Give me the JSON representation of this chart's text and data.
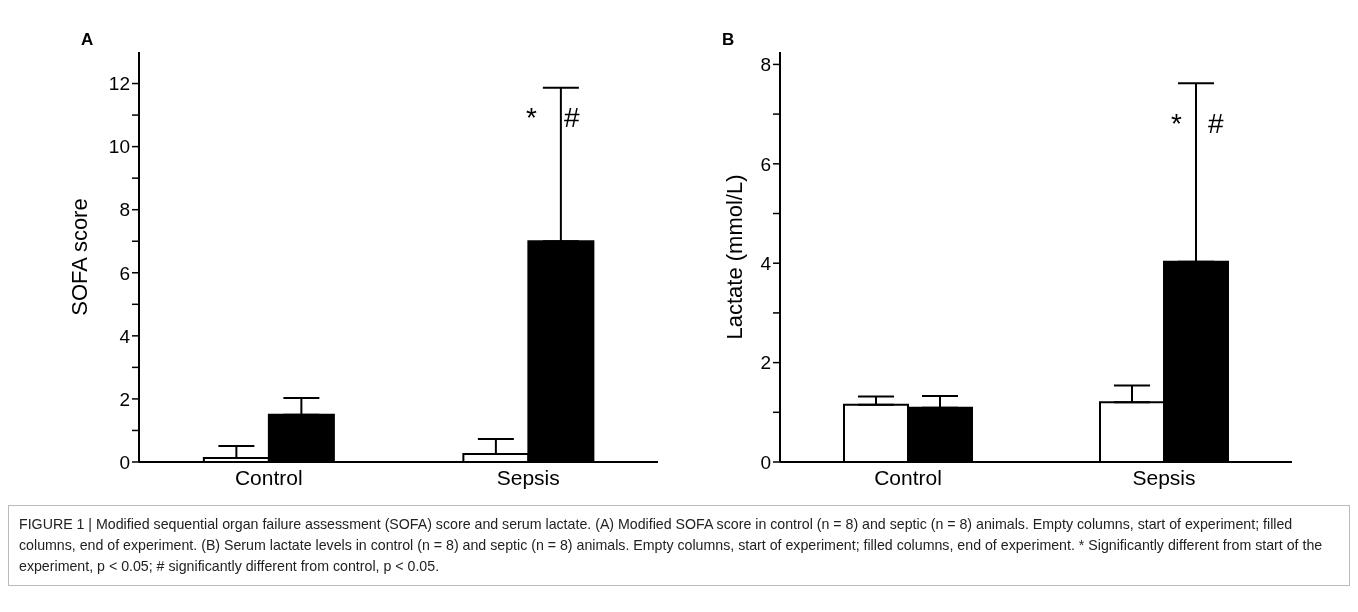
{
  "chart_data": [
    {
      "type": "bar",
      "title": "A",
      "ylabel": "SOFA score",
      "categories": [
        "Control",
        "Sepsis"
      ],
      "series": [
        {
          "color": "#ffffff",
          "values": [
            0.13,
            0.25
          ],
          "errors": [
            [
              0.13,
              0.51
            ],
            [
              0.25,
              0.73
            ]
          ]
        },
        {
          "color": "#000000",
          "values": [
            1.5,
            7.0
          ],
          "errors": [
            [
              1.5,
              2.03
            ],
            [
              7.0,
              11.87
            ]
          ]
        }
      ],
      "ylim": [
        0,
        13
      ],
      "yticks": [
        0,
        {
          "value": 1,
          "label": null
        },
        2,
        {
          "value": 3,
          "label": null
        },
        4,
        {
          "value": 5,
          "label": null
        },
        6,
        {
          "value": 7,
          "label": null
        },
        8,
        {
          "value": 9,
          "label": null
        },
        10,
        {
          "value": 11,
          "label": null
        },
        12
      ],
      "grid": false,
      "legend": false,
      "annotations": [
        "*",
        "#"
      ]
    },
    {
      "type": "bar",
      "title": "B",
      "ylabel": "Lactate (mmol/L)",
      "categories": [
        "Control",
        "Sepsis"
      ],
      "series": [
        {
          "color": "#ffffff",
          "values": [
            1.15,
            1.2
          ],
          "errors": [
            [
              1.15,
              1.32
            ],
            [
              1.2,
              1.54
            ]
          ]
        },
        {
          "color": "#000000",
          "values": [
            1.09,
            4.03
          ],
          "errors": [
            [
              1.09,
              1.33
            ],
            [
              4.03,
              7.62
            ]
          ]
        }
      ],
      "ylim": [
        0,
        8.25
      ],
      "yticks": [
        0,
        {
          "value": 1,
          "label": null
        },
        2,
        {
          "value": 3,
          "label": null
        },
        4,
        {
          "value": 5,
          "label": null
        },
        6,
        {
          "value": 7,
          "label": null
        },
        8
      ],
      "grid": false,
      "legend": false,
      "annotations": [
        "*",
        "#",
        "FIGURE 1 | Modified sequential organ failure assessment (SOFA) score and serum lactate. (A) Modified SOFA score in control (n = 8) and septic (n = 8) animals. Empty columns, start of experiment; filled columns, end of experiment. (B) Serum lactate levels in control (n = 8) and septic (n = 8) animals. Empty columns, start of experiment; filled columns, end of experiment. * Significantly different from start of the experiment, p < 0.05; # significantly different from control, p < 0.05."
      ]
    }
  ]
}
